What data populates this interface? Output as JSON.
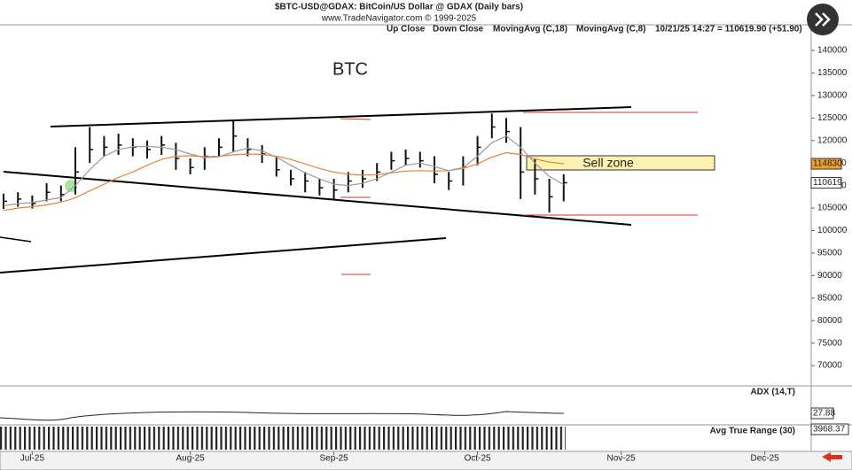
{
  "chart_data": {
    "type": "ohlc",
    "title": "$BTC-USD@GDAX:  BitCoin/US Dollar @ GDAX  (Daily bars)",
    "subtitle": "www.TradeNavigator.com © 1999-2025",
    "annotation": "BTC",
    "sell_zone_label": "Sell zone",
    "up_label": "Up Close",
    "down_label": "Down Close",
    "bar_color": "#111111",
    "status": "10/21/25 14:27 = 110619.90 (+51.90)",
    "categories": [
      null,
      null,
      "Jul-25",
      null,
      null,
      null,
      null,
      null,
      null,
      null,
      null,
      null,
      null,
      "Aug-25",
      null,
      null,
      null,
      null,
      null,
      null,
      null,
      null,
      null,
      "Sep-25",
      null,
      null,
      null,
      null,
      null,
      null,
      null,
      null,
      null,
      "Oct-25",
      null,
      null,
      null,
      null,
      null,
      null,
      null,
      null,
      null,
      "Nov-25",
      null,
      null,
      null,
      null,
      null,
      null,
      null,
      null,
      null,
      "Dec-25",
      null,
      null
    ],
    "high": [
      108200,
      108500,
      107800,
      110500,
      110000,
      118500,
      123000,
      121000,
      121500,
      120500,
      120000,
      121000,
      119500,
      116000,
      118500,
      120500,
      124500,
      120500,
      119000,
      116500,
      113500,
      113000,
      111500,
      111500,
      113000,
      113500,
      115000,
      117500,
      118000,
      117500,
      116500,
      113000,
      116500,
      121000,
      126000,
      125000,
      123000,
      116000,
      111500,
      112500,
      null,
      null,
      null,
      null,
      null,
      null,
      null,
      null,
      null,
      null,
      null,
      null,
      null,
      null,
      null,
      null
    ],
    "low": [
      104800,
      105300,
      104900,
      106500,
      106500,
      108000,
      115000,
      116500,
      116800,
      116500,
      116000,
      116800,
      113500,
      112500,
      113500,
      116500,
      117500,
      116500,
      115000,
      112000,
      110000,
      108500,
      107800,
      107000,
      108500,
      109500,
      111000,
      113500,
      114500,
      114000,
      110500,
      109000,
      110000,
      114500,
      120500,
      119500,
      107000,
      108000,
      104000,
      106500,
      null,
      null,
      null,
      null,
      null,
      null,
      null,
      null,
      null,
      null,
      null,
      null,
      null,
      null,
      null,
      null
    ],
    "close": [
      106500,
      107000,
      106000,
      108500,
      108000,
      113000,
      118000,
      118500,
      119000,
      118500,
      118000,
      119000,
      116000,
      114000,
      116500,
      118500,
      121000,
      118000,
      117000,
      113500,
      111500,
      111000,
      109500,
      109000,
      111000,
      111500,
      113000,
      115500,
      116000,
      115500,
      112500,
      111000,
      114000,
      118500,
      123000,
      122000,
      113000,
      111500,
      107500,
      110619,
      null,
      null,
      null,
      null,
      null,
      null,
      null,
      null,
      null,
      null,
      null,
      null,
      null,
      null,
      null,
      null
    ],
    "series": [
      {
        "name": "MovingAvg (C,18)",
        "color": "#e8823a",
        "values": [
          104500,
          105000,
          105300,
          105700,
          106300,
          107300,
          108800,
          110300,
          111800,
          113000,
          114500,
          115800,
          116500,
          116600,
          116400,
          116500,
          116800,
          117000,
          116900,
          116500,
          115800,
          114800,
          113800,
          113000,
          112500,
          112300,
          112400,
          112800,
          113200,
          113300,
          113200,
          113300,
          113800,
          114800,
          116300,
          117300,
          116900,
          115900,
          115200,
          114830,
          null,
          null,
          null,
          null,
          null,
          null,
          null,
          null,
          null,
          null,
          null,
          null,
          null,
          null,
          null,
          null
        ]
      },
      {
        "name": "MovingAvg (C,8)",
        "color": "#9a9a9a",
        "values": [
          105500,
          106000,
          106200,
          106800,
          107300,
          110000,
          113500,
          116500,
          118000,
          118600,
          118700,
          118500,
          118000,
          117000,
          116200,
          116400,
          117500,
          118300,
          117700,
          116300,
          114500,
          112800,
          111500,
          110300,
          110000,
          110500,
          111500,
          113000,
          114500,
          115000,
          114200,
          113300,
          114000,
          116500,
          119500,
          121000,
          118500,
          115000,
          112000,
          110200,
          null,
          null,
          null,
          null,
          null,
          null,
          null,
          null,
          null,
          null,
          null,
          null,
          null,
          null,
          null,
          null
        ]
      }
    ],
    "price_tags": [
      {
        "value": 114830,
        "color": "#f0a030"
      },
      {
        "value": 110619,
        "color": "#ffffff"
      }
    ],
    "ylim": [
      65500,
      145700
    ],
    "yticks": [
      140000,
      135000,
      130000,
      125000,
      120000,
      115000,
      110000,
      105000,
      100000,
      95000,
      90000,
      85000,
      80000,
      75000,
      70000
    ],
    "indicators": [
      {
        "name": "ADX (14,T)",
        "value": 27.88
      },
      {
        "name": "Avg True Range (30)",
        "value": 3968.37
      }
    ]
  }
}
